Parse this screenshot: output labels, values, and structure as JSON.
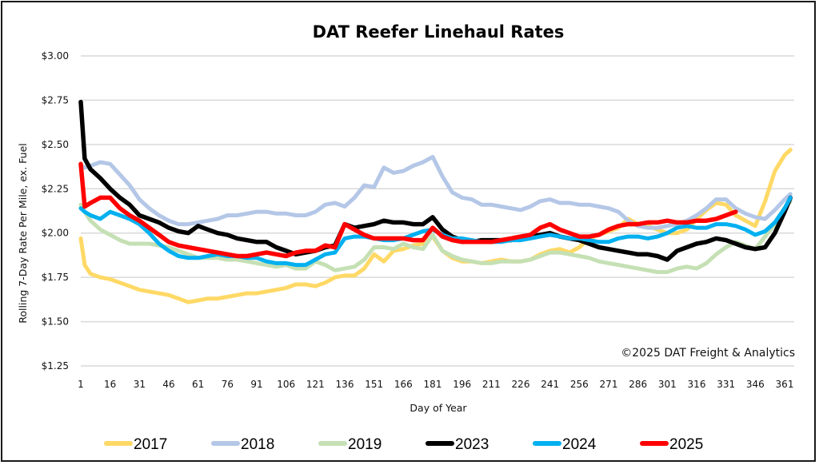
{
  "chart_data": {
    "type": "line",
    "title": "DAT Reefer Linehaul Rates",
    "xlabel": "Day of Year",
    "ylabel": "Rolling 7-Day Rate Per Mile, ex. Fuel",
    "annotation": "©2025 DAT Freight & Analytics",
    "xlim": [
      1,
      366
    ],
    "ylim": [
      1.25,
      3.0
    ],
    "grid": true,
    "legend_position": "bottom",
    "x_ticks": [
      "1",
      "16",
      "31",
      "46",
      "61",
      "76",
      "91",
      "106",
      "121",
      "136",
      "151",
      "166",
      "181",
      "196",
      "211",
      "226",
      "241",
      "256",
      "271",
      "286",
      "301",
      "316",
      "331",
      "346",
      "361"
    ],
    "y_ticks": [
      {
        "value": 3.0,
        "label": "$3.00"
      },
      {
        "value": 2.75,
        "label": "$2.75"
      },
      {
        "value": 2.5,
        "label": "$2.50"
      },
      {
        "value": 2.25,
        "label": "$2.25"
      },
      {
        "value": 2.0,
        "label": "$2.00"
      },
      {
        "value": 1.75,
        "label": "$1.75"
      },
      {
        "value": 1.5,
        "label": "$1.50"
      },
      {
        "value": 1.25,
        "label": "$1.25"
      }
    ],
    "x": [
      1,
      3,
      6,
      11,
      16,
      21,
      26,
      31,
      36,
      41,
      46,
      51,
      56,
      61,
      66,
      71,
      76,
      81,
      86,
      91,
      96,
      101,
      106,
      111,
      116,
      121,
      126,
      131,
      136,
      141,
      146,
      151,
      156,
      161,
      166,
      171,
      176,
      181,
      186,
      191,
      196,
      201,
      206,
      211,
      216,
      221,
      226,
      231,
      236,
      241,
      246,
      251,
      256,
      261,
      266,
      271,
      276,
      281,
      286,
      291,
      296,
      301,
      306,
      311,
      316,
      321,
      326,
      331,
      336,
      341,
      346,
      351,
      356,
      361,
      364
    ],
    "series": [
      {
        "name": "2017",
        "color": "#FFD966",
        "values": [
          1.97,
          1.82,
          1.77,
          1.75,
          1.74,
          1.72,
          1.7,
          1.68,
          1.67,
          1.66,
          1.65,
          1.63,
          1.61,
          1.62,
          1.63,
          1.63,
          1.64,
          1.65,
          1.66,
          1.66,
          1.67,
          1.68,
          1.69,
          1.71,
          1.71,
          1.7,
          1.72,
          1.75,
          1.76,
          1.76,
          1.8,
          1.88,
          1.84,
          1.9,
          1.91,
          1.93,
          1.94,
          1.98,
          1.9,
          1.86,
          1.84,
          1.84,
          1.83,
          1.84,
          1.85,
          1.84,
          1.84,
          1.85,
          1.88,
          1.9,
          1.91,
          1.89,
          1.92,
          1.97,
          1.99,
          2.01,
          2.03,
          2.08,
          2.05,
          2.04,
          2.02,
          2.0,
          2.0,
          2.02,
          2.08,
          2.13,
          2.17,
          2.16,
          2.1,
          2.07,
          2.04,
          2.18,
          2.35,
          2.44,
          2.47
        ]
      },
      {
        "name": "2018",
        "color": "#B4C7E7",
        "values": [
          2.38,
          2.37,
          2.38,
          2.4,
          2.39,
          2.33,
          2.27,
          2.19,
          2.14,
          2.1,
          2.07,
          2.05,
          2.05,
          2.06,
          2.07,
          2.08,
          2.1,
          2.1,
          2.11,
          2.12,
          2.12,
          2.11,
          2.11,
          2.1,
          2.1,
          2.12,
          2.16,
          2.17,
          2.15,
          2.2,
          2.27,
          2.26,
          2.37,
          2.34,
          2.35,
          2.38,
          2.4,
          2.43,
          2.32,
          2.23,
          2.2,
          2.19,
          2.16,
          2.16,
          2.15,
          2.14,
          2.13,
          2.15,
          2.18,
          2.19,
          2.17,
          2.17,
          2.16,
          2.16,
          2.15,
          2.14,
          2.12,
          2.07,
          2.04,
          2.03,
          2.03,
          2.04,
          2.05,
          2.07,
          2.1,
          2.14,
          2.19,
          2.19,
          2.14,
          2.11,
          2.09,
          2.08,
          2.13,
          2.19,
          2.22
        ]
      },
      {
        "name": "2019",
        "color": "#C5E0B4",
        "values": [
          2.16,
          2.12,
          2.07,
          2.02,
          1.99,
          1.96,
          1.94,
          1.94,
          1.94,
          1.93,
          1.92,
          1.9,
          1.88,
          1.86,
          1.86,
          1.86,
          1.85,
          1.85,
          1.84,
          1.83,
          1.82,
          1.81,
          1.82,
          1.8,
          1.8,
          1.84,
          1.82,
          1.79,
          1.8,
          1.81,
          1.85,
          1.92,
          1.92,
          1.91,
          1.94,
          1.92,
          1.91,
          1.99,
          1.9,
          1.87,
          1.85,
          1.84,
          1.83,
          1.83,
          1.84,
          1.84,
          1.84,
          1.85,
          1.87,
          1.89,
          1.89,
          1.88,
          1.87,
          1.86,
          1.84,
          1.83,
          1.82,
          1.81,
          1.8,
          1.79,
          1.78,
          1.78,
          1.8,
          1.81,
          1.8,
          1.83,
          1.88,
          1.92,
          1.95,
          1.93,
          1.91,
          1.98,
          2.05,
          2.14,
          2.18
        ]
      },
      {
        "name": "2023",
        "color": "#000000",
        "values": [
          2.74,
          2.42,
          2.36,
          2.31,
          2.25,
          2.2,
          2.16,
          2.1,
          2.08,
          2.06,
          2.03,
          2.01,
          2.0,
          2.04,
          2.02,
          2.0,
          1.99,
          1.97,
          1.96,
          1.95,
          1.95,
          1.92,
          1.9,
          1.88,
          1.89,
          1.9,
          1.92,
          1.93,
          2.05,
          2.03,
          2.04,
          2.05,
          2.07,
          2.06,
          2.06,
          2.05,
          2.05,
          2.09,
          2.02,
          1.98,
          1.96,
          1.95,
          1.96,
          1.96,
          1.96,
          1.96,
          1.97,
          1.98,
          1.99,
          2.0,
          1.98,
          1.97,
          1.96,
          1.94,
          1.92,
          1.91,
          1.9,
          1.89,
          1.88,
          1.88,
          1.87,
          1.85,
          1.9,
          1.92,
          1.94,
          1.95,
          1.97,
          1.96,
          1.94,
          1.92,
          1.91,
          1.92,
          2.0,
          2.12,
          2.2
        ]
      },
      {
        "name": "2024",
        "color": "#00B0F0",
        "values": [
          2.14,
          2.12,
          2.1,
          2.08,
          2.12,
          2.1,
          2.08,
          2.05,
          2.0,
          1.94,
          1.9,
          1.87,
          1.86,
          1.86,
          1.87,
          1.88,
          1.87,
          1.87,
          1.86,
          1.86,
          1.84,
          1.83,
          1.83,
          1.82,
          1.82,
          1.85,
          1.88,
          1.89,
          1.97,
          1.98,
          1.98,
          1.97,
          1.96,
          1.96,
          1.97,
          1.99,
          2.01,
          2.02,
          1.99,
          1.97,
          1.97,
          1.96,
          1.95,
          1.95,
          1.95,
          1.96,
          1.96,
          1.97,
          1.98,
          1.99,
          1.98,
          1.97,
          1.97,
          1.96,
          1.95,
          1.95,
          1.97,
          1.98,
          1.98,
          1.97,
          1.98,
          2.0,
          2.03,
          2.04,
          2.03,
          2.03,
          2.05,
          2.05,
          2.04,
          2.02,
          1.99,
          2.01,
          2.06,
          2.14,
          2.2
        ]
      },
      {
        "name": "2025",
        "color": "#FF0000",
        "values": [
          2.39,
          2.15,
          2.17,
          2.2,
          2.2,
          2.14,
          2.1,
          2.07,
          2.03,
          1.99,
          1.95,
          1.93,
          1.92,
          1.91,
          1.9,
          1.89,
          1.88,
          1.87,
          1.87,
          1.88,
          1.89,
          1.88,
          1.87,
          1.89,
          1.9,
          1.9,
          1.93,
          1.92,
          2.05,
          2.02,
          1.99,
          1.97,
          1.97,
          1.97,
          1.97,
          1.96,
          1.96,
          2.03,
          1.98,
          1.96,
          1.95,
          1.95,
          1.95,
          1.95,
          1.96,
          1.97,
          1.98,
          1.99,
          2.03,
          2.05,
          2.02,
          2.0,
          1.98,
          1.98,
          1.99,
          2.02,
          2.04,
          2.05,
          2.05,
          2.06,
          2.06,
          2.07,
          2.06,
          2.06,
          2.07,
          2.07,
          2.08,
          2.1,
          2.12,
          null,
          null,
          null,
          null,
          null,
          null
        ]
      }
    ]
  }
}
